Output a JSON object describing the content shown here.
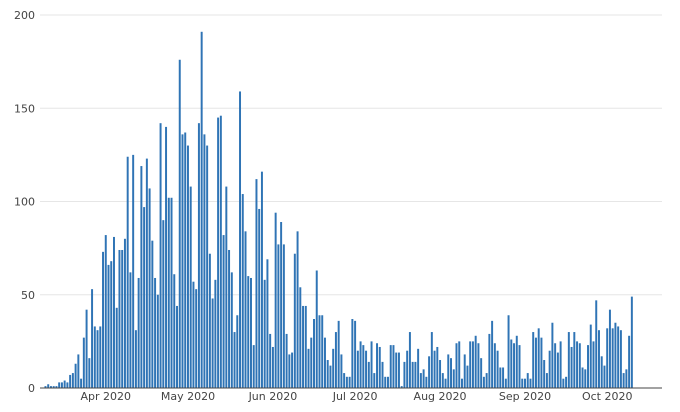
{
  "chart_data": {
    "type": "bar",
    "title": "",
    "xlabel": "",
    "ylabel": "",
    "colors": {
      "bar": "#2f74b5",
      "grid": "#e6e6e6",
      "axis": "#444444"
    },
    "grid": true,
    "legend": "none",
    "xlim": [
      "2020-03-08",
      "2020-10-21"
    ],
    "ylim": [
      0,
      200
    ],
    "yticks": [
      0,
      50,
      100,
      150,
      200
    ],
    "yticklabels": [
      "0",
      "50",
      "100",
      "150",
      "200"
    ],
    "xticks": [
      "2020-04-01",
      "2020-05-01",
      "2020-06-01",
      "2020-07-01",
      "2020-08-01",
      "2020-09-01",
      "2020-10-01"
    ],
    "xticklabels": [
      "Apr 2020",
      "May 2020",
      "Jun 2020",
      "Jul 2020",
      "Aug 2020",
      "Sep 2020",
      "Oct 2020"
    ],
    "start_date": "2020-03-10",
    "values": [
      1,
      2,
      1,
      1,
      1,
      3,
      3,
      4,
      3,
      7,
      8,
      13,
      18,
      5,
      27,
      42,
      16,
      53,
      33,
      31,
      33,
      73,
      82,
      66,
      68,
      81,
      43,
      74,
      74,
      80,
      124,
      62,
      125,
      31,
      59,
      119,
      97,
      123,
      107,
      79,
      59,
      50,
      142,
      90,
      140,
      102,
      102,
      61,
      44,
      176,
      136,
      137,
      130,
      108,
      57,
      53,
      142,
      191,
      136,
      130,
      72,
      48,
      58,
      145,
      146,
      82,
      108,
      74,
      62,
      30,
      39,
      159,
      104,
      84,
      60,
      59,
      23,
      112,
      96,
      116,
      58,
      69,
      29,
      22,
      94,
      77,
      89,
      77,
      29,
      18,
      19,
      72,
      84,
      54,
      44,
      44,
      21,
      27,
      37,
      63,
      39,
      39,
      27,
      15,
      12,
      21,
      30,
      36,
      18,
      8,
      6,
      6,
      37,
      36,
      20,
      25,
      23,
      20,
      14,
      25,
      8,
      24,
      22,
      14,
      6,
      6,
      23,
      23,
      19,
      19,
      1,
      14,
      20,
      30,
      14,
      14,
      21,
      8,
      10,
      6,
      17,
      30,
      20,
      22,
      15,
      8,
      5,
      18,
      16,
      10,
      24,
      25,
      5,
      18,
      12,
      25,
      25,
      28,
      24,
      16,
      6,
      8,
      29,
      36,
      24,
      20,
      11,
      11,
      5,
      39,
      26,
      24,
      28,
      23,
      5,
      5,
      8,
      5,
      30,
      27,
      32,
      27,
      15,
      8,
      20,
      35,
      24,
      19,
      25,
      5,
      6,
      30,
      22,
      30,
      25,
      24,
      11,
      10,
      23,
      34,
      25,
      47,
      31,
      17,
      12,
      32,
      42,
      32,
      35,
      33,
      31,
      8,
      10,
      28,
      49
    ]
  }
}
